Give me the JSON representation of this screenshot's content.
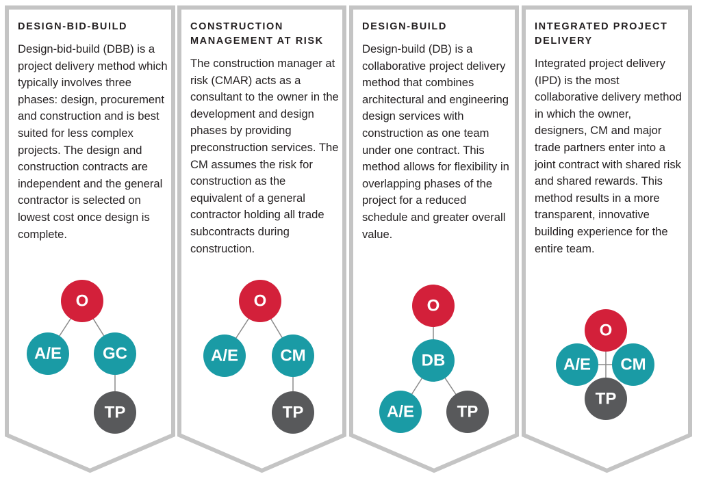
{
  "panels": [
    {
      "title": "DESIGN-BID-BUILD",
      "description": "Design-bid-build (DBB) is a project delivery method which typically involves three phases: design, procurement and construction and is best suited for less complex projects. The design and construction contracts are independent and the general contractor is selected on lowest cost once design is complete.",
      "nodes": [
        {
          "label": "O"
        },
        {
          "label": "A/E"
        },
        {
          "label": "GC"
        },
        {
          "label": "TP"
        }
      ]
    },
    {
      "title": "CONSTRUCTION MANAGEMENT AT RISK",
      "description": "The construction manager at risk (CMAR) acts as a consultant to the owner in the development and design phases by providing preconstruction services. The CM assumes the risk for construction as the equivalent of a general contractor holding all trade subcontracts during construction.",
      "nodes": [
        {
          "label": "O"
        },
        {
          "label": "A/E"
        },
        {
          "label": "CM"
        },
        {
          "label": "TP"
        }
      ]
    },
    {
      "title": "DESIGN-BUILD",
      "description": "Design-build (DB) is a collaborative project delivery method that combines architectural and engineering design services with construction as one team under one contract. This method allows for flexibility in overlapping phases of the project for a reduced schedule and greater overall value.",
      "nodes": [
        {
          "label": "O"
        },
        {
          "label": "DB"
        },
        {
          "label": "A/E"
        },
        {
          "label": "TP"
        }
      ]
    },
    {
      "title": "INTEGRATED PROJECT DELIVERY",
      "description": "Integrated project delivery (IPD) is the most collaborative delivery method in which the owner, designers, CM and major trade partners enter into a joint contract with shared risk and shared rewards. This method results in a more transparent, innovative building experience for the entire team.",
      "nodes": [
        {
          "label": "O"
        },
        {
          "label": "A/E"
        },
        {
          "label": "CM"
        },
        {
          "label": "TP"
        }
      ]
    }
  ]
}
